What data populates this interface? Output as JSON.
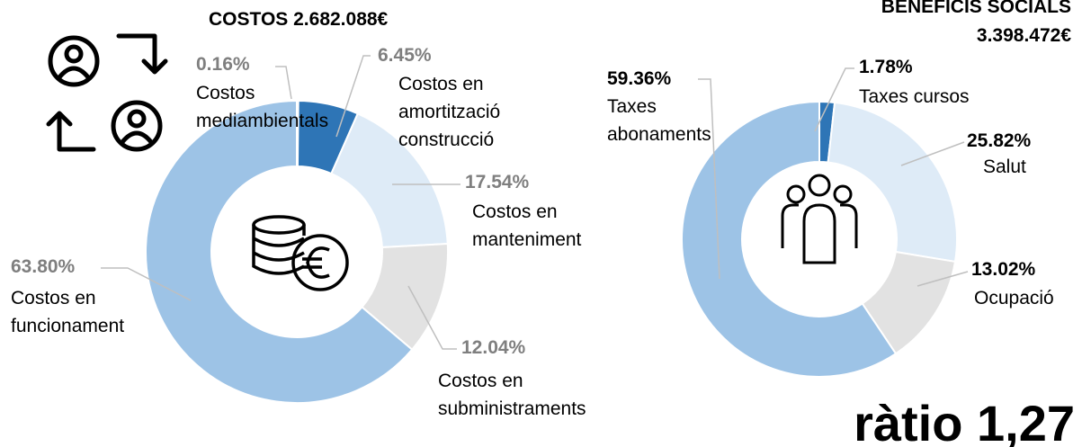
{
  "chart_data": [
    {
      "type": "pie",
      "title": "COSTOS 2.682.088€",
      "categories": [
        "Costos mediambientals",
        "Costos en amortització construcció",
        "Costos en manteniment",
        "Costos en subministraments",
        "Costos en funcionament"
      ],
      "values": [
        0.16,
        6.45,
        17.54,
        12.04,
        63.8
      ],
      "value_labels": [
        "0.16%",
        "6.45%",
        "17.54%",
        "12.04%",
        "63.80%"
      ],
      "colors": [
        "#2e75b6",
        "#2e75b6",
        "#deebf7",
        "#e2e2e2",
        "#9dc3e6"
      ]
    },
    {
      "type": "pie",
      "title": "BENEFICIS SOCIALS 3.398.472€",
      "categories": [
        "Taxes cursos",
        "Salut",
        "Ocupació",
        "Taxes abonaments"
      ],
      "values": [
        1.78,
        25.82,
        13.02,
        59.36
      ],
      "value_labels": [
        "1.78%",
        "25.82%",
        "13.02%",
        "59.36%"
      ],
      "colors": [
        "#2e75b6",
        "#deebf7",
        "#e2e2e2",
        "#9dc3e6"
      ]
    }
  ],
  "annotation": "ràtio 1,27"
}
